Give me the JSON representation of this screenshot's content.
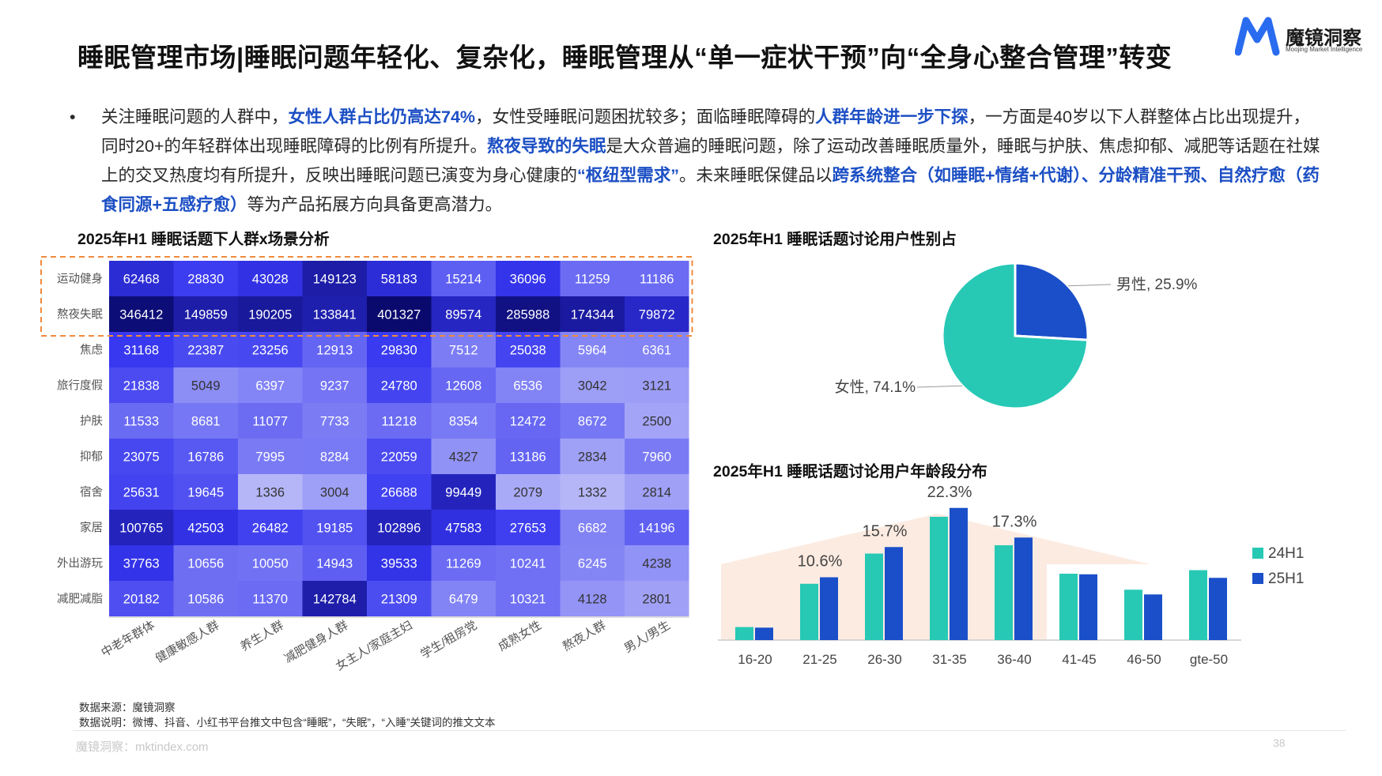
{
  "title": "睡眠管理市场|睡眠问题年轻化、复杂化，睡眠管理从“单一症状干预”向“全身心整合管理”转变",
  "logo": {
    "name": "魔镜洞察",
    "sub": "Moojing Market Intelligence",
    "color": "#2a6cf0"
  },
  "summary": {
    "bullet": "•",
    "segments": [
      {
        "text": "关注睡眠问题的人群中，",
        "hl": false
      },
      {
        "text": "女性人群占比仍高达74%",
        "hl": true
      },
      {
        "text": "，女性受睡眠问题困扰较多；面临睡眠障碍的",
        "hl": false
      },
      {
        "text": "人群年龄进一步下探",
        "hl": true
      },
      {
        "text": "，一方面是40岁以下人群整体占比出现提升，同时20+的年轻群体出现睡眠障碍的比例有所提升。",
        "hl": false
      },
      {
        "text": "熬夜导致的失眠",
        "hl": true
      },
      {
        "text": "是大众普遍的睡眠问题，除了运动改善睡眠质量外，睡眠与护肤、焦虑抑郁、减肥等话题在社媒上的交叉热度均有所提升，反映出睡眠问题已演变为身心健康的",
        "hl": false
      },
      {
        "text": "“枢纽型需求”",
        "hl": true
      },
      {
        "text": "。未来睡眠保健品以",
        "hl": false
      },
      {
        "text": "跨系统整合（如睡眠+情绪+代谢）、分龄精准干预、自然疗愈（药食同源+五感疗愈）",
        "hl": true
      },
      {
        "text": "等为产品拓展方向具备更高潜力。",
        "hl": false
      }
    ]
  },
  "chart_data": [
    {
      "type": "heatmap",
      "title": "2025年H1 睡眠话题下人群x场景分析",
      "rows": [
        "运动健身",
        "熬夜失眠",
        "焦虑",
        "旅行度假",
        "护肤",
        "抑郁",
        "宿舍",
        "家居",
        "外出游玩",
        "减肥减脂"
      ],
      "columns": [
        "中老年群体",
        "健康敏感人群",
        "养生人群",
        "减肥健身人群",
        "女主人/家庭主妇",
        "学生/租房党",
        "成熟女性",
        "熬夜人群",
        "男人/男生"
      ],
      "values": [
        [
          62468,
          28830,
          43028,
          149123,
          58183,
          15214,
          36096,
          11259,
          11186
        ],
        [
          346412,
          149859,
          190205,
          133841,
          401327,
          89574,
          285988,
          174344,
          79872
        ],
        [
          31168,
          22387,
          23256,
          12913,
          29830,
          7512,
          25038,
          5964,
          6361
        ],
        [
          21838,
          5049,
          6397,
          9237,
          24780,
          12608,
          6536,
          3042,
          3121
        ],
        [
          11533,
          8681,
          11077,
          7733,
          11218,
          8354,
          12472,
          8672,
          2500
        ],
        [
          23075,
          16786,
          7995,
          8284,
          22059,
          4327,
          13186,
          2834,
          7960
        ],
        [
          25631,
          19645,
          1336,
          3004,
          26688,
          99449,
          2079,
          1332,
          2814
        ],
        [
          100765,
          42503,
          26482,
          19185,
          102896,
          47583,
          27653,
          6682,
          14196
        ],
        [
          37763,
          10656,
          10050,
          14943,
          39533,
          11269,
          10241,
          6245,
          4238
        ],
        [
          20182,
          10586,
          11370,
          142784,
          21309,
          6479,
          10321,
          4128,
          2801
        ]
      ],
      "highlight_rows": [
        "运动健身",
        "熬夜失眠"
      ],
      "colors": {
        "low": "#eef0fc",
        "high": "#0a0a6e",
        "highlight_box": "#f08a3c"
      }
    },
    {
      "type": "pie",
      "title": "2025年H1 睡眠话题讨论用户性别占",
      "slices": [
        {
          "label": "男性",
          "value": 25.9,
          "display": "男性, 25.9%",
          "color": "#1a4fc9"
        },
        {
          "label": "女性",
          "value": 74.1,
          "display": "女性, 74.1%",
          "color": "#27c9b5"
        }
      ]
    },
    {
      "type": "bar",
      "title": "2025年H1 睡眠话题讨论用户年龄段分布",
      "categories": [
        "16-20",
        "21-25",
        "26-30",
        "31-35",
        "36-40",
        "41-45",
        "46-50",
        "gte-50"
      ],
      "series": [
        {
          "name": "24H1",
          "color": "#27c9b5",
          "values": [
            2.2,
            9.5,
            14.6,
            20.8,
            16.0,
            11.2,
            8.5,
            11.8
          ]
        },
        {
          "name": "25H1",
          "color": "#1a4fc9",
          "values": [
            2.1,
            10.6,
            15.7,
            22.3,
            17.3,
            11.1,
            7.7,
            10.5
          ]
        }
      ],
      "data_labels": [
        {
          "category": "21-25",
          "text": "10.6%"
        },
        {
          "category": "26-30",
          "text": "15.7%"
        },
        {
          "category": "31-35",
          "text": "22.3%"
        },
        {
          "category": "36-40",
          "text": "17.3%"
        }
      ],
      "background_color": "#fbe7dc"
    }
  ],
  "notes": {
    "source": "数据来源：魔镜洞察",
    "desc": "数据说明：微博、抖音、小红书平台推文中包含“睡眠”，“失眠”，“入睡”关键词的推文文本"
  },
  "footer": {
    "text": "魔镜洞察：mktindex.com",
    "page": "38"
  }
}
